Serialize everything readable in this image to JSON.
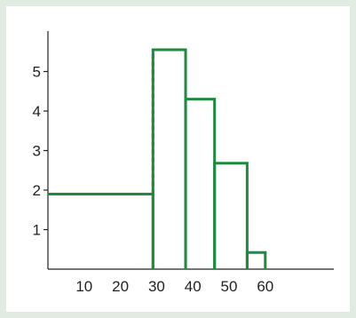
{
  "colors": {
    "background": "#e2ebe2",
    "panel": "#ffffff",
    "series": "#1e8a3e",
    "axis": "#222222"
  },
  "chart_data": {
    "type": "bar",
    "xlim": [
      0,
      72
    ],
    "ylim": [
      0,
      6
    ],
    "x_ticks": [
      {
        "value": 10,
        "label": "10"
      },
      {
        "value": 20,
        "label": "20"
      },
      {
        "value": 30,
        "label": "30"
      },
      {
        "value": 40,
        "label": "40"
      },
      {
        "value": 50,
        "label": "50"
      },
      {
        "value": 60,
        "label": "60"
      }
    ],
    "y_ticks": [
      {
        "value": 1,
        "label": "1"
      },
      {
        "value": 2,
        "label": "2"
      },
      {
        "value": 3,
        "label": "3"
      },
      {
        "value": 4,
        "label": "4"
      },
      {
        "value": 5,
        "label": "5"
      }
    ],
    "bins": [
      {
        "x0": 0,
        "x1": 29,
        "value": 1.9,
        "open_left": true,
        "dashed_right_extension": true
      },
      {
        "x0": 29,
        "x1": 38,
        "value": 5.55
      },
      {
        "x0": 38,
        "x1": 46,
        "value": 4.3
      },
      {
        "x0": 46,
        "x1": 55,
        "value": 2.68
      },
      {
        "x0": 55,
        "x1": 60,
        "value": 0.42
      }
    ],
    "grid": false,
    "legend": "none"
  }
}
